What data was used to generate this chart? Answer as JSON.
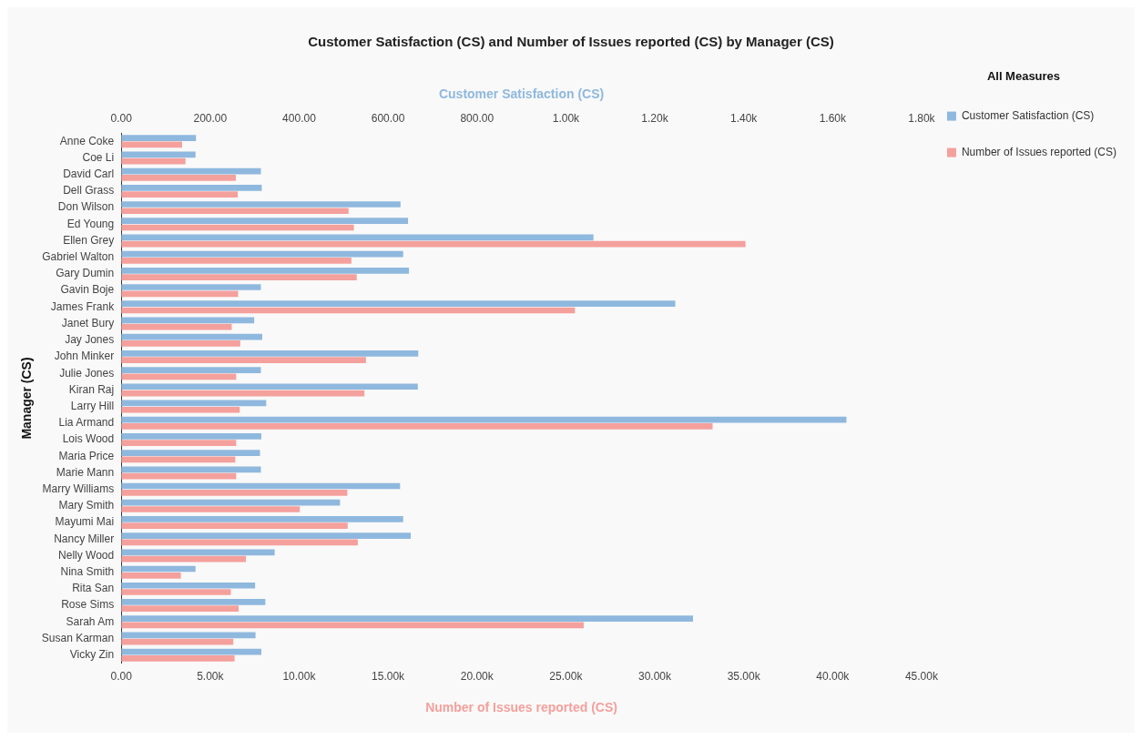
{
  "chart_data": {
    "type": "bar",
    "orientation": "horizontal",
    "title": "Customer Satisfaction (CS) and Number of Issues reported (CS) by Manager (CS)",
    "xlabel": "Number of Issues reported (CS)",
    "x2label": "Customer Satisfaction (CS)",
    "ylabel": "Manager (CS)",
    "legend_title": "All Measures",
    "legend": "top right",
    "grid": false,
    "categories": [
      "Anne Coke",
      "Coe Li",
      "David Carl",
      "Dell Grass",
      "Don Wilson",
      "Ed Young",
      "Ellen Grey",
      "Gabriel Walton",
      "Gary Dumin",
      "Gavin Boje",
      "James Frank",
      "Janet Bury",
      "Jay Jones",
      "John Minker",
      "Julie Jones",
      "Kiran Raj",
      "Larry Hill",
      "Lia Armand",
      "Lois Wood",
      "Maria Price",
      "Marie Mann",
      "Marry Williams",
      "Mary Smith",
      "Mayumi Mai",
      "Nancy Miller",
      "Nelly Wood",
      "Nina Smith",
      "Rita San",
      "Rose Sims",
      "Sarah Am",
      "Susan Karman",
      "Vicky Zin"
    ],
    "series": [
      {
        "name": "Customer Satisfaction (CS)",
        "color": "#8fb8de",
        "axis": "x2",
        "values": [
          168,
          167,
          314,
          316,
          628,
          645,
          1062,
          634,
          647,
          314,
          1246,
          299,
          317,
          668,
          314,
          667,
          326,
          1631,
          315,
          312,
          314,
          627,
          492,
          634,
          651,
          345,
          167,
          301,
          324,
          1286,
          302,
          315
        ]
      },
      {
        "name": "Number of Issues reported (CS)",
        "color": "#f4a09c",
        "values": [
          3420,
          3610,
          6440,
          6550,
          12780,
          13080,
          35100,
          12940,
          13240,
          6570,
          25510,
          6210,
          6690,
          13760,
          6460,
          13670,
          6660,
          33250,
          6460,
          6410,
          6460,
          12710,
          10040,
          12730,
          13300,
          7010,
          3350,
          6160,
          6600,
          26000,
          6300,
          6370
        ]
      }
    ],
    "xlim": [
      0,
      45000
    ],
    "xticks": [
      {
        "value": 0,
        "label": "0.00"
      },
      {
        "value": 5000,
        "label": "5.00k"
      },
      {
        "value": 10000,
        "label": "10.00k"
      },
      {
        "value": 15000,
        "label": "15.00k"
      },
      {
        "value": 20000,
        "label": "20.00k"
      },
      {
        "value": 25000,
        "label": "25.00k"
      },
      {
        "value": 30000,
        "label": "30.00k"
      },
      {
        "value": 35000,
        "label": "35.00k"
      },
      {
        "value": 40000,
        "label": "40.00k"
      },
      {
        "value": 45000,
        "label": "45.00k"
      }
    ],
    "x2lim": [
      0,
      1800
    ],
    "x2ticks": [
      {
        "value": 0,
        "label": "0.00"
      },
      {
        "value": 200,
        "label": "200.00"
      },
      {
        "value": 400,
        "label": "400.00"
      },
      {
        "value": 600,
        "label": "600.00"
      },
      {
        "value": 800,
        "label": "800.00"
      },
      {
        "value": 1000,
        "label": "1.00k"
      },
      {
        "value": 1200,
        "label": "1.20k"
      },
      {
        "value": 1400,
        "label": "1.40k"
      },
      {
        "value": 1600,
        "label": "1.60k"
      },
      {
        "value": 1800,
        "label": "1.80k"
      }
    ]
  }
}
